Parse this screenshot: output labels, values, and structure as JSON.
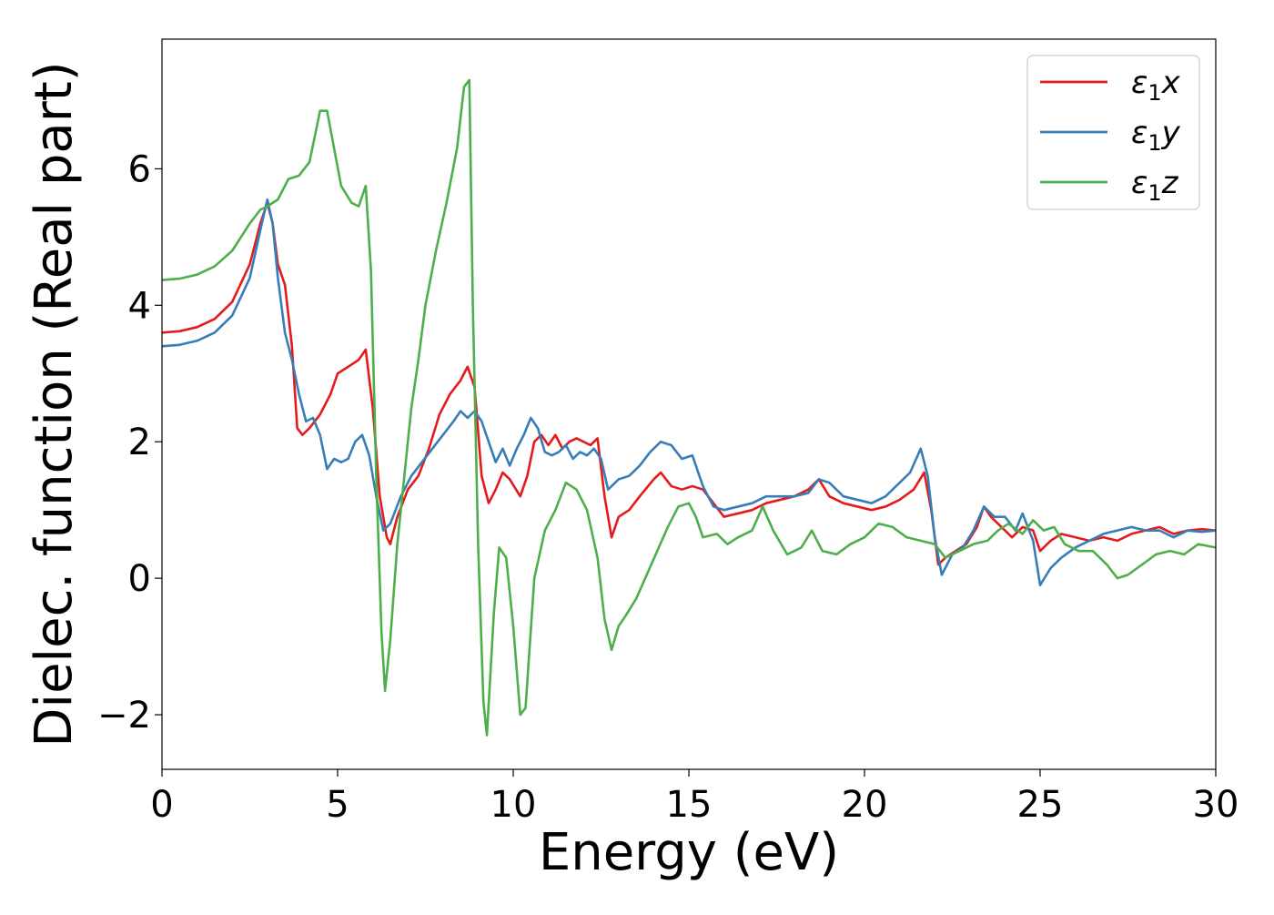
{
  "chart_data": {
    "type": "line",
    "xlabel": "Energy (eV)",
    "ylabel": "Dielec. function (Real part)",
    "xlim": [
      0,
      30
    ],
    "ylim": [
      -2.8,
      7.9
    ],
    "x_ticks": [
      0,
      5,
      10,
      15,
      20,
      25,
      30
    ],
    "x_tick_labels": [
      "0",
      "5",
      "10",
      "15",
      "20",
      "25",
      "30"
    ],
    "y_ticks": [
      -2,
      0,
      2,
      4,
      6
    ],
    "y_tick_labels": [
      "−2",
      "0",
      "2",
      "4",
      "6"
    ],
    "grid": false,
    "legend_position": "top-right",
    "series": [
      {
        "name": "ε₁x",
        "legend_base": "ε",
        "legend_sub": "1",
        "legend_suffix": "x",
        "color": "#e41a1c",
        "points": [
          [
            0,
            3.6
          ],
          [
            0.5,
            3.62
          ],
          [
            1.0,
            3.68
          ],
          [
            1.5,
            3.8
          ],
          [
            2.0,
            4.05
          ],
          [
            2.5,
            4.6
          ],
          [
            2.8,
            5.2
          ],
          [
            3.0,
            5.5
          ],
          [
            3.15,
            5.2
          ],
          [
            3.3,
            4.6
          ],
          [
            3.5,
            4.3
          ],
          [
            3.7,
            3.4
          ],
          [
            3.85,
            2.2
          ],
          [
            4.0,
            2.1
          ],
          [
            4.2,
            2.2
          ],
          [
            4.5,
            2.4
          ],
          [
            4.8,
            2.7
          ],
          [
            5.0,
            3.0
          ],
          [
            5.3,
            3.1
          ],
          [
            5.6,
            3.2
          ],
          [
            5.8,
            3.35
          ],
          [
            6.0,
            2.5
          ],
          [
            6.2,
            1.2
          ],
          [
            6.4,
            0.6
          ],
          [
            6.5,
            0.5
          ],
          [
            6.7,
            0.9
          ],
          [
            7.0,
            1.3
          ],
          [
            7.3,
            1.5
          ],
          [
            7.6,
            1.9
          ],
          [
            7.9,
            2.4
          ],
          [
            8.2,
            2.7
          ],
          [
            8.5,
            2.9
          ],
          [
            8.7,
            3.1
          ],
          [
            8.9,
            2.8
          ],
          [
            9.1,
            1.5
          ],
          [
            9.3,
            1.1
          ],
          [
            9.5,
            1.3
          ],
          [
            9.7,
            1.55
          ],
          [
            9.9,
            1.45
          ],
          [
            10.2,
            1.2
          ],
          [
            10.4,
            1.5
          ],
          [
            10.6,
            2.0
          ],
          [
            10.8,
            2.1
          ],
          [
            11.0,
            1.95
          ],
          [
            11.2,
            2.1
          ],
          [
            11.4,
            1.9
          ],
          [
            11.6,
            2.0
          ],
          [
            11.8,
            2.05
          ],
          [
            12.0,
            2.0
          ],
          [
            12.2,
            1.95
          ],
          [
            12.4,
            2.05
          ],
          [
            12.6,
            1.2
          ],
          [
            12.8,
            0.6
          ],
          [
            13.0,
            0.9
          ],
          [
            13.3,
            1.0
          ],
          [
            13.6,
            1.2
          ],
          [
            14.0,
            1.45
          ],
          [
            14.2,
            1.55
          ],
          [
            14.5,
            1.35
          ],
          [
            14.8,
            1.3
          ],
          [
            15.1,
            1.35
          ],
          [
            15.4,
            1.3
          ],
          [
            15.7,
            1.1
          ],
          [
            16.0,
            0.9
          ],
          [
            16.4,
            0.95
          ],
          [
            16.8,
            1.0
          ],
          [
            17.2,
            1.1
          ],
          [
            17.6,
            1.15
          ],
          [
            18.0,
            1.2
          ],
          [
            18.4,
            1.3
          ],
          [
            18.7,
            1.45
          ],
          [
            19.0,
            1.2
          ],
          [
            19.4,
            1.1
          ],
          [
            19.8,
            1.05
          ],
          [
            20.2,
            1.0
          ],
          [
            20.6,
            1.05
          ],
          [
            21.0,
            1.15
          ],
          [
            21.4,
            1.3
          ],
          [
            21.7,
            1.55
          ],
          [
            21.9,
            1.0
          ],
          [
            22.1,
            0.2
          ],
          [
            22.3,
            0.3
          ],
          [
            22.6,
            0.4
          ],
          [
            22.9,
            0.5
          ],
          [
            23.2,
            0.75
          ],
          [
            23.4,
            1.05
          ],
          [
            23.6,
            0.9
          ],
          [
            23.9,
            0.75
          ],
          [
            24.2,
            0.6
          ],
          [
            24.5,
            0.75
          ],
          [
            24.8,
            0.7
          ],
          [
            25.0,
            0.4
          ],
          [
            25.3,
            0.55
          ],
          [
            25.6,
            0.65
          ],
          [
            26.0,
            0.6
          ],
          [
            26.4,
            0.55
          ],
          [
            26.8,
            0.6
          ],
          [
            27.2,
            0.55
          ],
          [
            27.6,
            0.65
          ],
          [
            28.0,
            0.7
          ],
          [
            28.4,
            0.75
          ],
          [
            28.8,
            0.65
          ],
          [
            29.2,
            0.7
          ],
          [
            29.6,
            0.72
          ],
          [
            30.0,
            0.7
          ]
        ]
      },
      {
        "name": "ε₁y",
        "legend_base": "ε",
        "legend_sub": "1",
        "legend_suffix": "y",
        "color": "#377eb8",
        "points": [
          [
            0,
            3.4
          ],
          [
            0.5,
            3.42
          ],
          [
            1.0,
            3.48
          ],
          [
            1.5,
            3.6
          ],
          [
            2.0,
            3.85
          ],
          [
            2.5,
            4.4
          ],
          [
            2.8,
            5.1
          ],
          [
            3.0,
            5.55
          ],
          [
            3.15,
            5.2
          ],
          [
            3.3,
            4.4
          ],
          [
            3.5,
            3.6
          ],
          [
            3.7,
            3.2
          ],
          [
            3.9,
            2.7
          ],
          [
            4.1,
            2.3
          ],
          [
            4.3,
            2.35
          ],
          [
            4.5,
            2.1
          ],
          [
            4.7,
            1.6
          ],
          [
            4.9,
            1.75
          ],
          [
            5.1,
            1.7
          ],
          [
            5.3,
            1.75
          ],
          [
            5.5,
            2.0
          ],
          [
            5.7,
            2.1
          ],
          [
            5.9,
            1.8
          ],
          [
            6.1,
            1.2
          ],
          [
            6.3,
            0.7
          ],
          [
            6.5,
            0.8
          ],
          [
            6.8,
            1.2
          ],
          [
            7.1,
            1.5
          ],
          [
            7.4,
            1.7
          ],
          [
            7.7,
            1.9
          ],
          [
            8.0,
            2.1
          ],
          [
            8.3,
            2.3
          ],
          [
            8.5,
            2.45
          ],
          [
            8.7,
            2.35
          ],
          [
            8.9,
            2.45
          ],
          [
            9.1,
            2.3
          ],
          [
            9.3,
            2.0
          ],
          [
            9.5,
            1.7
          ],
          [
            9.7,
            1.9
          ],
          [
            9.9,
            1.65
          ],
          [
            10.1,
            1.9
          ],
          [
            10.3,
            2.1
          ],
          [
            10.5,
            2.35
          ],
          [
            10.7,
            2.2
          ],
          [
            10.9,
            1.85
          ],
          [
            11.1,
            1.8
          ],
          [
            11.3,
            1.85
          ],
          [
            11.5,
            1.95
          ],
          [
            11.7,
            1.75
          ],
          [
            11.9,
            1.85
          ],
          [
            12.1,
            1.8
          ],
          [
            12.3,
            1.9
          ],
          [
            12.5,
            1.75
          ],
          [
            12.7,
            1.3
          ],
          [
            13.0,
            1.45
          ],
          [
            13.3,
            1.5
          ],
          [
            13.6,
            1.65
          ],
          [
            13.9,
            1.85
          ],
          [
            14.2,
            2.0
          ],
          [
            14.5,
            1.95
          ],
          [
            14.8,
            1.75
          ],
          [
            15.1,
            1.8
          ],
          [
            15.4,
            1.35
          ],
          [
            15.7,
            1.05
          ],
          [
            16.0,
            1.0
          ],
          [
            16.4,
            1.05
          ],
          [
            16.8,
            1.1
          ],
          [
            17.2,
            1.2
          ],
          [
            17.6,
            1.2
          ],
          [
            18.0,
            1.2
          ],
          [
            18.4,
            1.25
          ],
          [
            18.7,
            1.45
          ],
          [
            19.0,
            1.4
          ],
          [
            19.4,
            1.2
          ],
          [
            19.8,
            1.15
          ],
          [
            20.2,
            1.1
          ],
          [
            20.6,
            1.2
          ],
          [
            21.0,
            1.4
          ],
          [
            21.3,
            1.55
          ],
          [
            21.6,
            1.9
          ],
          [
            21.8,
            1.5
          ],
          [
            22.0,
            0.6
          ],
          [
            22.2,
            0.05
          ],
          [
            22.5,
            0.35
          ],
          [
            22.8,
            0.45
          ],
          [
            23.1,
            0.7
          ],
          [
            23.4,
            1.05
          ],
          [
            23.7,
            0.9
          ],
          [
            24.0,
            0.9
          ],
          [
            24.3,
            0.7
          ],
          [
            24.5,
            0.95
          ],
          [
            24.8,
            0.55
          ],
          [
            25.0,
            -0.1
          ],
          [
            25.3,
            0.15
          ],
          [
            25.6,
            0.3
          ],
          [
            26.0,
            0.45
          ],
          [
            26.4,
            0.55
          ],
          [
            26.8,
            0.65
          ],
          [
            27.2,
            0.7
          ],
          [
            27.6,
            0.75
          ],
          [
            28.0,
            0.7
          ],
          [
            28.4,
            0.7
          ],
          [
            28.8,
            0.6
          ],
          [
            29.2,
            0.7
          ],
          [
            29.6,
            0.68
          ],
          [
            30.0,
            0.7
          ]
        ]
      },
      {
        "name": "ε₁z",
        "legend_base": "ε",
        "legend_sub": "1",
        "legend_suffix": "z",
        "color": "#4daf4a",
        "points": [
          [
            0,
            4.37
          ],
          [
            0.5,
            4.39
          ],
          [
            1.0,
            4.45
          ],
          [
            1.5,
            4.57
          ],
          [
            2.0,
            4.8
          ],
          [
            2.5,
            5.2
          ],
          [
            2.8,
            5.4
          ],
          [
            3.0,
            5.45
          ],
          [
            3.3,
            5.55
          ],
          [
            3.6,
            5.85
          ],
          [
            3.9,
            5.9
          ],
          [
            4.2,
            6.1
          ],
          [
            4.5,
            6.85
          ],
          [
            4.7,
            6.85
          ],
          [
            4.9,
            6.3
          ],
          [
            5.1,
            5.75
          ],
          [
            5.4,
            5.5
          ],
          [
            5.6,
            5.45
          ],
          [
            5.8,
            5.75
          ],
          [
            5.95,
            4.5
          ],
          [
            6.1,
            1.5
          ],
          [
            6.25,
            -0.8
          ],
          [
            6.35,
            -1.65
          ],
          [
            6.5,
            -0.9
          ],
          [
            6.7,
            0.5
          ],
          [
            6.9,
            1.5
          ],
          [
            7.1,
            2.5
          ],
          [
            7.3,
            3.2
          ],
          [
            7.5,
            4.0
          ],
          [
            7.8,
            4.8
          ],
          [
            8.1,
            5.5
          ],
          [
            8.4,
            6.3
          ],
          [
            8.6,
            7.2
          ],
          [
            8.75,
            7.3
          ],
          [
            8.85,
            4.0
          ],
          [
            9.0,
            0.5
          ],
          [
            9.15,
            -1.8
          ],
          [
            9.25,
            -2.3
          ],
          [
            9.45,
            -0.5
          ],
          [
            9.6,
            0.45
          ],
          [
            9.8,
            0.3
          ],
          [
            10.0,
            -0.7
          ],
          [
            10.2,
            -2.0
          ],
          [
            10.35,
            -1.9
          ],
          [
            10.6,
            0.0
          ],
          [
            10.9,
            0.7
          ],
          [
            11.2,
            1.0
          ],
          [
            11.5,
            1.4
          ],
          [
            11.8,
            1.3
          ],
          [
            12.1,
            1.0
          ],
          [
            12.4,
            0.3
          ],
          [
            12.6,
            -0.6
          ],
          [
            12.8,
            -1.05
          ],
          [
            13.0,
            -0.7
          ],
          [
            13.2,
            -0.55
          ],
          [
            13.5,
            -0.3
          ],
          [
            13.8,
            0.05
          ],
          [
            14.1,
            0.4
          ],
          [
            14.4,
            0.75
          ],
          [
            14.7,
            1.05
          ],
          [
            15.0,
            1.1
          ],
          [
            15.2,
            0.9
          ],
          [
            15.4,
            0.6
          ],
          [
            15.8,
            0.65
          ],
          [
            16.1,
            0.5
          ],
          [
            16.4,
            0.6
          ],
          [
            16.8,
            0.7
          ],
          [
            17.1,
            1.05
          ],
          [
            17.4,
            0.7
          ],
          [
            17.8,
            0.35
          ],
          [
            18.2,
            0.45
          ],
          [
            18.5,
            0.7
          ],
          [
            18.8,
            0.4
          ],
          [
            19.2,
            0.35
          ],
          [
            19.6,
            0.5
          ],
          [
            20.0,
            0.6
          ],
          [
            20.4,
            0.8
          ],
          [
            20.8,
            0.75
          ],
          [
            21.2,
            0.6
          ],
          [
            21.6,
            0.55
          ],
          [
            22.0,
            0.5
          ],
          [
            22.3,
            0.3
          ],
          [
            22.7,
            0.4
          ],
          [
            23.1,
            0.5
          ],
          [
            23.5,
            0.55
          ],
          [
            23.8,
            0.7
          ],
          [
            24.1,
            0.8
          ],
          [
            24.5,
            0.65
          ],
          [
            24.8,
            0.85
          ],
          [
            25.1,
            0.7
          ],
          [
            25.4,
            0.75
          ],
          [
            25.7,
            0.5
          ],
          [
            26.1,
            0.4
          ],
          [
            26.5,
            0.4
          ],
          [
            26.9,
            0.2
          ],
          [
            27.2,
            0.0
          ],
          [
            27.5,
            0.05
          ],
          [
            27.9,
            0.2
          ],
          [
            28.3,
            0.35
          ],
          [
            28.7,
            0.4
          ],
          [
            29.1,
            0.35
          ],
          [
            29.5,
            0.5
          ],
          [
            30.0,
            0.45
          ]
        ]
      }
    ]
  }
}
